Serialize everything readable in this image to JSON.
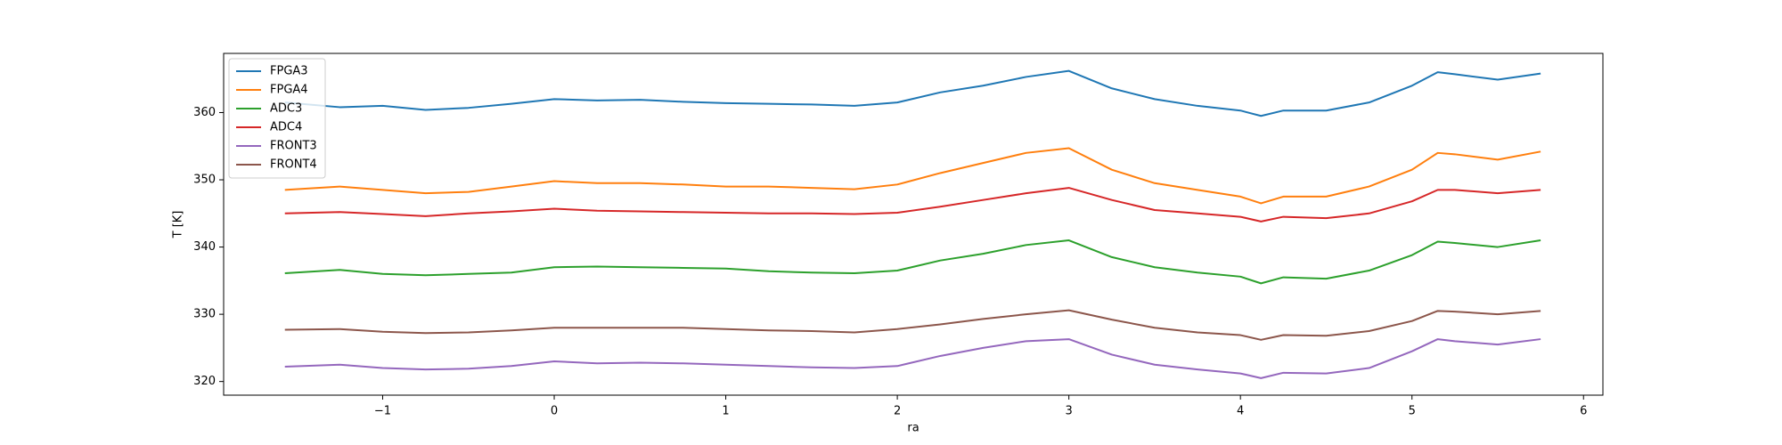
{
  "chart_data": {
    "type": "line",
    "xlabel": "ra",
    "ylabel": "T [K]",
    "x": [
      -1.57,
      -1.25,
      -1,
      -0.75,
      -0.5,
      -0.25,
      0,
      0.25,
      0.5,
      0.75,
      1,
      1.25,
      1.5,
      1.75,
      2,
      2.25,
      2.5,
      2.75,
      3,
      3.25,
      3.5,
      3.75,
      4,
      4.12,
      4.25,
      4.5,
      4.75,
      5,
      5.15,
      5.25,
      5.5,
      5.75
    ],
    "series": [
      {
        "name": "FPGA3",
        "color": "#1f77b4",
        "values": [
          361.5,
          360.8,
          361,
          360.4,
          360.7,
          361.3,
          362,
          361.8,
          361.9,
          361.6,
          361.4,
          361.3,
          361.2,
          361,
          361.5,
          363,
          364,
          365.3,
          366.2,
          363.6,
          362,
          361,
          360.3,
          359.5,
          360.3,
          360.3,
          361.5,
          364,
          366,
          365.7,
          364.9,
          365.8
        ]
      },
      {
        "name": "FPGA4",
        "color": "#ff7f0e",
        "values": [
          348.5,
          349,
          348.5,
          348,
          348.2,
          349,
          349.8,
          349.5,
          349.5,
          349.3,
          349,
          349,
          348.8,
          348.6,
          349.3,
          351,
          352.5,
          354,
          354.7,
          351.5,
          349.5,
          348.5,
          347.5,
          346.5,
          347.5,
          347.5,
          349,
          351.5,
          354,
          353.8,
          353,
          354.2
        ]
      },
      {
        "name": "ADC3",
        "color": "#2ca02c",
        "values": [
          336.1,
          336.6,
          336,
          335.8,
          336,
          336.2,
          337,
          337.1,
          337,
          336.9,
          336.8,
          336.4,
          336.2,
          336.1,
          336.5,
          338,
          339,
          340.3,
          341,
          338.5,
          337,
          336.2,
          335.6,
          334.6,
          335.5,
          335.3,
          336.5,
          338.8,
          340.8,
          340.6,
          340,
          341
        ]
      },
      {
        "name": "ADC4",
        "color": "#d62728",
        "values": [
          345,
          345.2,
          344.9,
          344.6,
          345,
          345.3,
          345.7,
          345.4,
          345.3,
          345.2,
          345.1,
          345,
          345,
          344.9,
          345.1,
          346,
          347,
          348,
          348.8,
          347,
          345.5,
          345,
          344.5,
          343.8,
          344.5,
          344.3,
          345,
          346.8,
          348.5,
          348.5,
          348,
          348.5
        ]
      },
      {
        "name": "FRONT3",
        "color": "#9467bd",
        "values": [
          322.2,
          322.5,
          322,
          321.8,
          321.9,
          322.3,
          323,
          322.7,
          322.8,
          322.7,
          322.5,
          322.3,
          322.1,
          322,
          322.3,
          323.8,
          325,
          326,
          326.3,
          324,
          322.5,
          321.8,
          321.2,
          320.5,
          321.3,
          321.2,
          322,
          324.5,
          326.3,
          326,
          325.5,
          326.3
        ]
      },
      {
        "name": "FRONT4",
        "color": "#8c564b",
        "values": [
          327.7,
          327.8,
          327.4,
          327.2,
          327.3,
          327.6,
          328,
          328,
          328,
          328,
          327.8,
          327.6,
          327.5,
          327.3,
          327.8,
          328.5,
          329.3,
          330,
          330.6,
          329.2,
          328,
          327.3,
          326.9,
          326.2,
          326.9,
          326.8,
          327.5,
          329,
          330.5,
          330.4,
          330,
          330.5
        ]
      }
    ],
    "xlim": [
      -1.927,
      6.113
    ],
    "ylim": [
      317.97,
      368.8
    ],
    "xticks": [
      {
        "value": -1,
        "label": "−1"
      },
      0,
      1,
      2,
      3,
      4,
      5,
      6
    ],
    "yticks": [
      320,
      330,
      340,
      350,
      360
    ],
    "legend": "upper left"
  }
}
